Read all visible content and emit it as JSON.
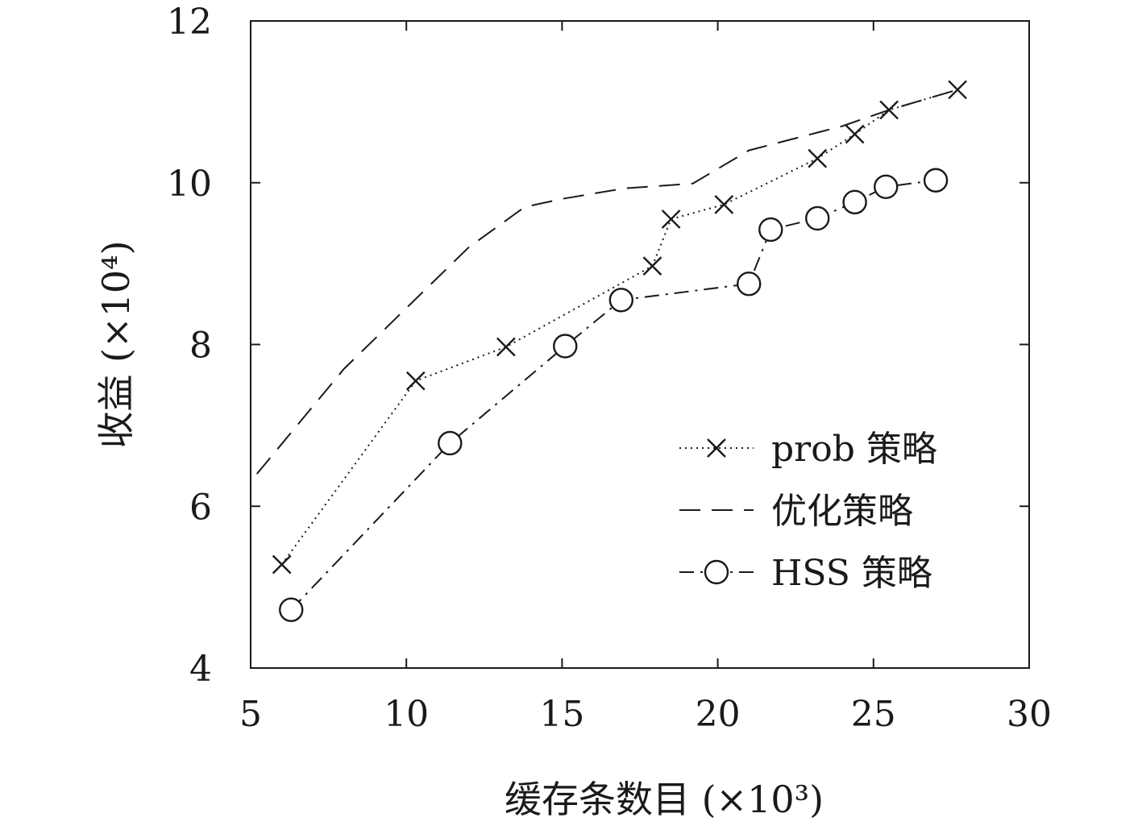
{
  "chart_data": {
    "type": "line",
    "xlabel": "缓存条数目 (×10³)",
    "ylabel": "收益 (×10⁴)",
    "xlim": [
      5,
      30
    ],
    "ylim": [
      4,
      12
    ],
    "xticks": [
      "5",
      "10",
      "15",
      "20",
      "25",
      "30"
    ],
    "yticks": [
      "4",
      "6",
      "8",
      "10",
      "12"
    ],
    "grid": false,
    "legend_position": "lower-right",
    "series": [
      {
        "name": "prob 策略",
        "line_style": "dotted",
        "marker": "x",
        "x": [
          6.0,
          10.3,
          13.2,
          17.9,
          18.5,
          20.2,
          23.2,
          24.4,
          25.5,
          27.7
        ],
        "y": [
          5.28,
          7.55,
          7.97,
          8.97,
          9.55,
          9.73,
          10.3,
          10.6,
          10.9,
          11.15
        ]
      },
      {
        "name": "优化策略",
        "line_style": "dashed",
        "marker": "none",
        "x": [
          5.2,
          8.0,
          12.0,
          13.8,
          15.0,
          17.0,
          19.2,
          21.0,
          24.0,
          25.5,
          27.7
        ],
        "y": [
          6.4,
          7.7,
          9.2,
          9.7,
          9.8,
          9.93,
          9.99,
          10.4,
          10.7,
          10.9,
          11.15
        ]
      },
      {
        "name": "HSS 策略",
        "line_style": "dash-dot",
        "marker": "circle",
        "x": [
          6.3,
          11.4,
          15.1,
          16.9,
          21.0,
          21.7,
          23.2,
          24.4,
          25.4,
          27.0
        ],
        "y": [
          4.72,
          6.78,
          7.98,
          8.55,
          8.75,
          9.42,
          9.56,
          9.76,
          9.95,
          10.03
        ]
      }
    ]
  }
}
